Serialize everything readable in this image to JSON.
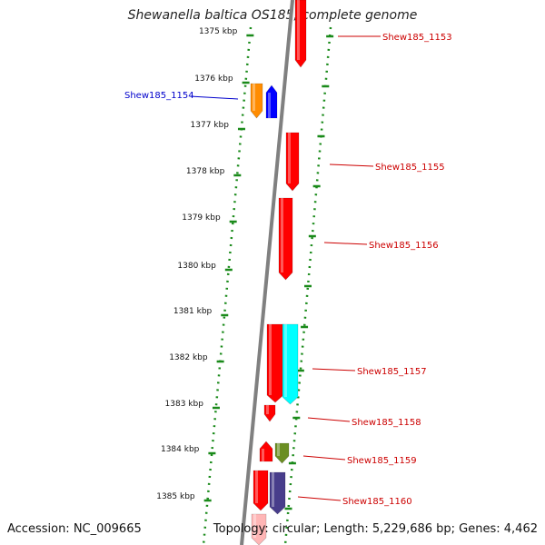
{
  "title": "Shewanella baltica OS185, complete genome",
  "footer": {
    "accession": "Accession: NC_009665",
    "summary": "Topology: circular; Length: 5,229,686 bp; Genes: 4,462"
  },
  "axis": {
    "unit": "kbp",
    "ticks": [
      "1375 kbp",
      "1376 kbp",
      "1377 kbp",
      "1378 kbp",
      "1379 kbp",
      "1380 kbp",
      "1381 kbp",
      "1382 kbp",
      "1383 kbp",
      "1384 kbp",
      "1385 kbp"
    ]
  },
  "colors": {
    "backbone": "#808080",
    "tick_marks": "#1a8a1a",
    "label_left": "#0000cc",
    "label_right": "#cc0000",
    "red_gene": "#ff0000",
    "orange_gene": "#ff8c00",
    "blue_gene": "#0000ff",
    "cyan_gene": "#00ffff",
    "olive_gene": "#6b8e23",
    "slate_gene": "#483d8b",
    "pink_gene": "#ffb6b6"
  },
  "genes": [
    {
      "label": "Shew185_1153",
      "strand": "-",
      "color": "red",
      "labeled": true
    },
    {
      "label": "Shew185_1154",
      "strand": "+",
      "color": "blue",
      "labeled": true
    },
    {
      "label": "",
      "strand": "-",
      "color": "orange",
      "labeled": false
    },
    {
      "label": "Shew185_1155",
      "strand": "-",
      "color": "red",
      "labeled": true
    },
    {
      "label": "Shew185_1156",
      "strand": "-",
      "color": "red",
      "labeled": true
    },
    {
      "label": "Shew185_1157",
      "strand": "-",
      "color": "red",
      "labeled": true
    },
    {
      "label": "",
      "strand": "-",
      "color": "cyan",
      "labeled": false
    },
    {
      "label": "Shew185_1158",
      "strand": "-",
      "color": "red",
      "labeled": true
    },
    {
      "label": "Shew185_1159",
      "strand": "+",
      "color": "red",
      "labeled": true
    },
    {
      "label": "",
      "strand": "-",
      "color": "olive",
      "labeled": false
    },
    {
      "label": "Shew185_1160",
      "strand": "-",
      "color": "red",
      "labeled": true
    },
    {
      "label": "",
      "strand": "-",
      "color": "slate",
      "labeled": false
    },
    {
      "label": "",
      "strand": "-",
      "color": "pink",
      "labeled": false
    }
  ]
}
